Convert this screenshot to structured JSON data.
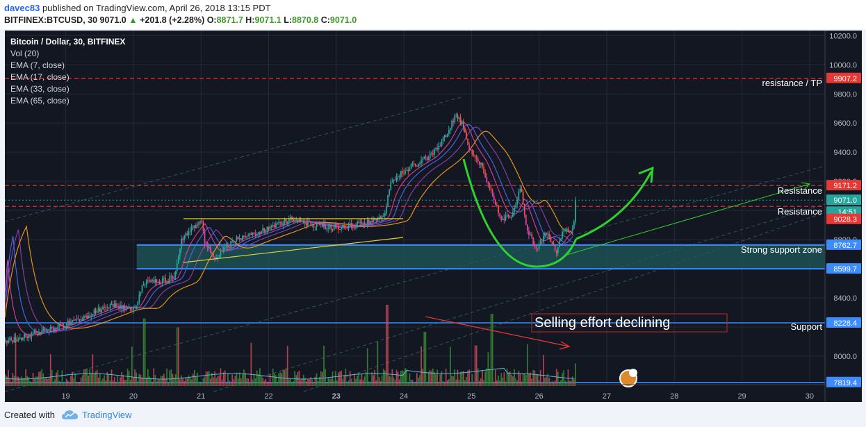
{
  "header": {
    "author": "davec83",
    "published": "published on TradingView.com, April 26, 2018 13:15 PDT",
    "symbol": "BITFINEX:BTCUSD, 30",
    "last": "9071.0",
    "change": "+201.8 (+2.28%)",
    "o": "8871.7",
    "h": "9071.1",
    "l": "8870.8",
    "c": "9071.0"
  },
  "legend": {
    "title": "Bitcoin / Dollar, 30, BITFINEX",
    "items": [
      "Vol (20)",
      "EMA (7, close)",
      "EMA (17, close)",
      "EMA (33, close)",
      "EMA (65, close)"
    ]
  },
  "footer": {
    "created": "Created with",
    "brand": "TradingView"
  },
  "colors": {
    "bg": "#131722",
    "up": "#26a69a",
    "down": "#ef5350",
    "pink": "#e040a0",
    "ema_orange": "#f7a21b",
    "ema_blue": "#4a6cf7",
    "ema_purple": "#8e44ad",
    "support_blue": "#3d8bfd",
    "resistance_red": "#e53935",
    "green_arrow": "#2fd12f"
  },
  "chart_data": {
    "type": "candlestick",
    "x_ticks": [
      "19",
      "20",
      "21",
      "22",
      "23",
      "24",
      "25",
      "26",
      "27",
      "28",
      "29",
      "30"
    ],
    "y_ticks": [
      "10200.0",
      "10000.0",
      "9800.0",
      "9600.0",
      "9400.0",
      "9200.0",
      "8800.0",
      "8400.0",
      "8000.0"
    ],
    "ylim": [
      7810,
      10235
    ],
    "xlim": [
      18.1,
      30.1
    ],
    "price_tags": [
      {
        "label": "9907.2",
        "value": 9907.2,
        "color": "#e53935"
      },
      {
        "label": "9171.2",
        "value": 9171.2,
        "color": "#e53935"
      },
      {
        "label": "9071.0",
        "value": 9071.0,
        "color": "#26a69a"
      },
      {
        "label": "14:51",
        "value": 8990,
        "color": "#26a69a"
      },
      {
        "label": "9028.3",
        "value": 8940,
        "color": "#e53935"
      },
      {
        "label": "8762.7",
        "value": 8762.7,
        "color": "#3d8bfd"
      },
      {
        "label": "8599.7",
        "value": 8599.7,
        "color": "#3d8bfd"
      },
      {
        "label": "8228.4",
        "value": 8228.4,
        "color": "#3d8bfd"
      },
      {
        "label": "7819.4",
        "value": 7819.4,
        "color": "#3d8bfd"
      }
    ],
    "annotations": [
      {
        "text": "resistance / TP"
      },
      {
        "text": "Resistance"
      },
      {
        "text": "Resistance"
      },
      {
        "text": "Strong support zone"
      },
      {
        "text": "Support"
      },
      {
        "text": "Selling effort declining"
      }
    ],
    "price_path": [
      [
        18.1,
        8100
      ],
      [
        18.5,
        8150
      ],
      [
        18.9,
        8200
      ],
      [
        19.3,
        8280
      ],
      [
        19.7,
        8350
      ],
      [
        20.0,
        8320
      ],
      [
        20.15,
        8500
      ],
      [
        20.5,
        8520
      ],
      [
        20.6,
        8560
      ],
      [
        20.7,
        8800
      ],
      [
        21.0,
        8950
      ],
      [
        21.05,
        8770
      ],
      [
        21.2,
        8680
      ],
      [
        21.5,
        8800
      ],
      [
        22.0,
        8880
      ],
      [
        22.3,
        8940
      ],
      [
        22.7,
        8900
      ],
      [
        23.0,
        8880
      ],
      [
        23.4,
        8910
      ],
      [
        23.7,
        8950
      ],
      [
        23.8,
        9200
      ],
      [
        24.1,
        9300
      ],
      [
        24.4,
        9380
      ],
      [
        24.6,
        9500
      ],
      [
        24.75,
        9650
      ],
      [
        24.85,
        9600
      ],
      [
        24.95,
        9420
      ],
      [
        25.15,
        9300
      ],
      [
        25.3,
        9100
      ],
      [
        25.45,
        8930
      ],
      [
        25.6,
        8980
      ],
      [
        25.72,
        9160
      ],
      [
        25.8,
        8900
      ],
      [
        25.95,
        8720
      ],
      [
        26.1,
        8850
      ],
      [
        26.25,
        8720
      ],
      [
        26.35,
        8870
      ],
      [
        26.5,
        8870
      ],
      [
        26.53,
        9071
      ]
    ],
    "volume_spikes": [
      {
        "x": 20.15,
        "v": 0.75
      },
      {
        "x": 20.65,
        "v": 0.65
      },
      {
        "x": 23.75,
        "v": 0.9
      },
      {
        "x": 25.3,
        "v": 0.8
      },
      {
        "x": 24.3,
        "v": 0.6
      },
      {
        "x": 25.05,
        "v": 0.45
      },
      {
        "x": 26.53,
        "v": 0.25
      }
    ]
  }
}
